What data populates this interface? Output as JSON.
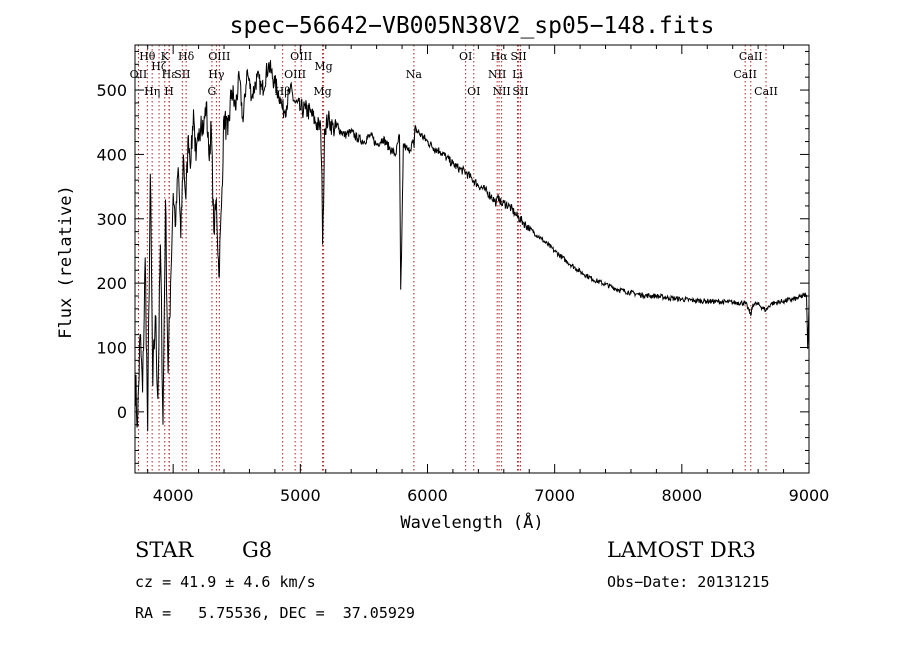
{
  "chart_data": {
    "type": "line",
    "title": "spec−56642−VB005N38V2_sp05−148.fits",
    "xlabel": "Wavelength (Å)",
    "ylabel": "Flux (relative)",
    "xlim": [
      3700,
      9000
    ],
    "ylim": [
      -95,
      570
    ],
    "xticks": [
      4000,
      5000,
      6000,
      7000,
      8000,
      9000
    ],
    "yticks": [
      0,
      100,
      200,
      300,
      400,
      500
    ],
    "grid": false,
    "series": [
      {
        "name": "Flux",
        "x": [
          3700,
          3720,
          3740,
          3760,
          3780,
          3800,
          3820,
          3840,
          3860,
          3880,
          3900,
          3920,
          3940,
          3960,
          3980,
          4000,
          4020,
          4040,
          4060,
          4080,
          4100,
          4120,
          4140,
          4160,
          4180,
          4200,
          4220,
          4240,
          4260,
          4280,
          4300,
          4320,
          4340,
          4360,
          4380,
          4400,
          4430,
          4460,
          4490,
          4520,
          4550,
          4580,
          4620,
          4660,
          4700,
          4750,
          4800,
          4840,
          4860,
          4880,
          4920,
          4960,
          5000,
          5040,
          5080,
          5120,
          5160,
          5170,
          5175,
          5183,
          5190,
          5220,
          5260,
          5300,
          5350,
          5400,
          5450,
          5500,
          5550,
          5600,
          5650,
          5700,
          5750,
          5780,
          5789,
          5796,
          5810,
          5850,
          5890,
          5895,
          5900,
          5950,
          6000,
          6050,
          6100,
          6150,
          6200,
          6250,
          6300,
          6350,
          6400,
          6450,
          6500,
          6540,
          6563,
          6580,
          6600,
          6650,
          6700,
          6750,
          6800,
          6900,
          7000,
          7100,
          7200,
          7300,
          7400,
          7500,
          7600,
          7700,
          7800,
          7900,
          8000,
          8100,
          8200,
          8300,
          8400,
          8498,
          8520,
          8542,
          8560,
          8600,
          8662,
          8700,
          8800,
          8900,
          8980,
          8990,
          9000
        ],
        "values": [
          60,
          -20,
          120,
          30,
          240,
          -30,
          370,
          40,
          150,
          20,
          260,
          -20,
          330,
          60,
          200,
          340,
          290,
          380,
          270,
          400,
          330,
          430,
          390,
          470,
          390,
          420,
          460,
          440,
          480,
          400,
          440,
          280,
          330,
          210,
          320,
          460,
          430,
          500,
          470,
          520,
          450,
          530,
          490,
          520,
          500,
          540,
          510,
          490,
          470,
          470,
          500,
          480,
          470,
          470,
          465,
          450,
          440,
          370,
          260,
          320,
          440,
          455,
          440,
          440,
          430,
          435,
          425,
          420,
          430,
          415,
          425,
          410,
          400,
          430,
          190,
          240,
          415,
          405,
          420,
          410,
          440,
          430,
          420,
          410,
          405,
          395,
          385,
          378,
          372,
          362,
          352,
          345,
          335,
          325,
          335,
          322,
          325,
          318,
          305,
          295,
          285,
          268,
          250,
          233,
          218,
          206,
          198,
          190,
          185,
          181,
          180,
          177,
          175,
          173,
          172,
          171,
          170,
          169,
          162,
          150,
          168,
          167,
          158,
          168,
          172,
          176,
          182,
          98,
          168
        ]
      }
    ]
  },
  "spectral_lines": [
    {
      "name": "Hθ",
      "wavelength": 3797,
      "row": 1
    },
    {
      "name": "K",
      "wavelength": 3934,
      "row": 1
    },
    {
      "name": "Hδ",
      "wavelength": 4102,
      "row": 1
    },
    {
      "name": "OIII",
      "wavelength": 4363,
      "row": 1
    },
    {
      "name": "OIII",
      "wavelength": 5007,
      "row": 1
    },
    {
      "name": "OI",
      "wavelength": 6300,
      "row": 1
    },
    {
      "name": "Hα",
      "wavelength": 6563,
      "row": 1
    },
    {
      "name": "SII",
      "wavelength": 6717,
      "row": 1
    },
    {
      "name": "CaII",
      "wavelength": 8542,
      "row": 1
    },
    {
      "name": "OII",
      "wavelength": 3727,
      "row": 2
    },
    {
      "name": "Hε",
      "wavelength": 3970,
      "row": 2
    },
    {
      "name": "SII",
      "wavelength": 4072,
      "row": 2
    },
    {
      "name": "Hγ",
      "wavelength": 4340,
      "row": 2
    },
    {
      "name": "OIII",
      "wavelength": 4959,
      "row": 2
    },
    {
      "name": "Na",
      "wavelength": 5893,
      "row": 2
    },
    {
      "name": "NII",
      "wavelength": 6548,
      "row": 2
    },
    {
      "name": "Li",
      "wavelength": 6708,
      "row": 2
    },
    {
      "name": "CaII",
      "wavelength": 8498,
      "row": 2
    },
    {
      "name": "Hη",
      "wavelength": 3835,
      "row": 3
    },
    {
      "name": "H",
      "wavelength": 3968,
      "row": 3
    },
    {
      "name": "G",
      "wavelength": 4305,
      "row": 3
    },
    {
      "name": "Hβ",
      "wavelength": 4861,
      "row": 3
    },
    {
      "name": "Mg",
      "wavelength": 5175,
      "row": 3
    },
    {
      "name": "OI",
      "wavelength": 6364,
      "row": 3
    },
    {
      "name": "NII",
      "wavelength": 6583,
      "row": 3
    },
    {
      "name": "SII",
      "wavelength": 6731,
      "row": 3
    },
    {
      "name": "CaII",
      "wavelength": 8662,
      "row": 3
    },
    {
      "name": "Hζ",
      "wavelength": 3889,
      "row": 0
    },
    {
      "name": "Mg",
      "wavelength": 5183,
      "row": 0
    }
  ],
  "colors": {
    "line_marker": "#b22222",
    "spectrum": "#000000",
    "axes": "#000000"
  },
  "info": {
    "class": "STAR",
    "subclass": "G8",
    "survey": "LAMOST DR3",
    "cz": "cz = 41.9 ± 4.6 km/s",
    "obs_date": "Obs−Date: 20131215",
    "coords": "RA =   5.75536, DEC =  37.05929"
  }
}
